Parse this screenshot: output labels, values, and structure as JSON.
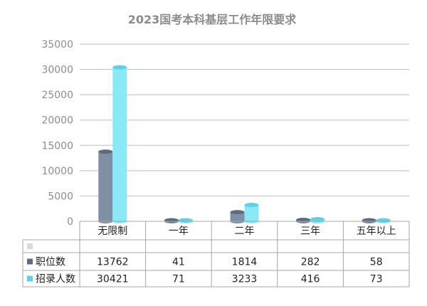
{
  "chart_data": {
    "type": "bar",
    "title": "2023国考本科基层工作年限要求",
    "categories": [
      "无限制",
      "一年",
      "二年",
      "三年",
      "五年以上"
    ],
    "series": [
      {
        "name": "职位数",
        "values": [
          13762,
          41,
          1814,
          282,
          58
        ],
        "color": "#7f8fa4",
        "dark": "#5d6b7d"
      },
      {
        "name": "招录人数",
        "values": [
          30421,
          71,
          3233,
          416,
          73
        ],
        "color": "#8be8f7",
        "dark": "#5fd0e6"
      }
    ],
    "ylim": [
      0,
      35000
    ],
    "yticks": [
      0,
      5000,
      10000,
      15000,
      20000,
      25000,
      30000,
      35000
    ],
    "grid": true,
    "data_table": true
  }
}
